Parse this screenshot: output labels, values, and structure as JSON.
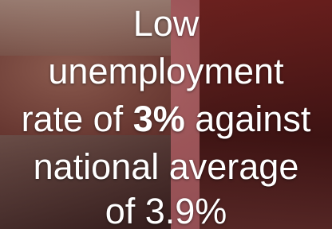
{
  "headline": {
    "lines": [
      [
        "Low"
      ],
      [
        "unemployment"
      ],
      [
        "rate of",
        "3%",
        "against"
      ],
      [
        "national average"
      ],
      [
        "of 3.9%"
      ]
    ]
  }
}
